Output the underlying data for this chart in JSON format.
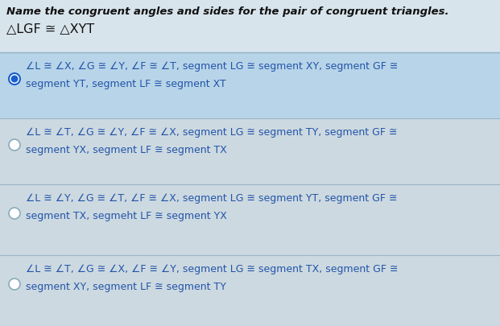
{
  "background_color": "#cdd9e0",
  "title_line1": "Name the congruent angles and sides for the pair of congruent triangles.",
  "title_line2": "△LGF ≅ △XYT",
  "options": [
    {
      "selected": true,
      "line1": "∠L ≅ ∠X, ∠G ≅ ∠Y, ∠F ≅ ∠T, segment LG ≅ segment XY, segment GF ≅",
      "line2": "segment YT, segment LF ≅ segment XT"
    },
    {
      "selected": false,
      "line1": "∠L ≅ ∠T, ∠G ≅ ∠Y, ∠F ≅ ∠X, segment LG ≅ segment TY, segment GF ≅",
      "line2": "segment YX, segment LF ≅ segment TX"
    },
    {
      "selected": false,
      "line1": "∠L ≅ ∠Y, ∠G ≅ ∠T, ∠F ≅ ∠X, segment LG ≅ segment YT, segment GF ≅",
      "line2": "segment TX, segmeht LF ≅ segment YX"
    },
    {
      "selected": false,
      "line1": "∠L ≅ ∠T, ∠G ≅ ∠X, ∠F ≅ ∠Y, segment LG ≅ segment TX, segment GF ≅",
      "line2": "segment XY, segment LF ≅ segment TY"
    }
  ],
  "text_color": "#2255aa",
  "title_color": "#111111",
  "selected_dot_color": "#1a5fcc",
  "selected_dot_border": "#1a5fcc",
  "unselected_dot_fill": "#d8e8f0",
  "dot_border_color": "#8aabbb",
  "option_bg_selected": "#b8d4e8",
  "option_bg_unselected": "#cdd9e0",
  "separator_color": "#99b5c5",
  "stripe_color": "#c5d3da",
  "font_size_title": 9.5,
  "font_size_title2": 11.5,
  "font_size_option": 9.0,
  "title_fontstyle": "italic",
  "title_fontweight": "bold"
}
